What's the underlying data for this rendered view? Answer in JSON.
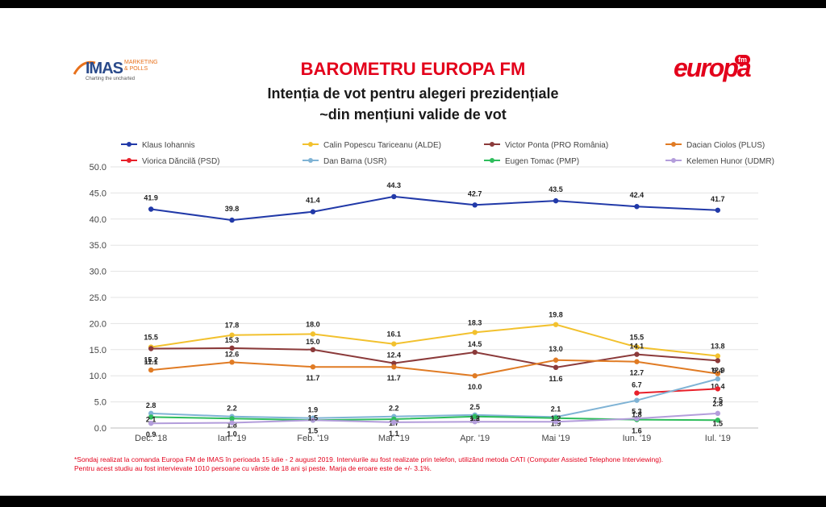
{
  "header": {
    "title": "BAROMETRU EUROPA FM",
    "subtitle_line1": "Intenția de vot pentru alegeri prezidențiale",
    "subtitle_line2": "~din mențiuni valide de vot"
  },
  "logos": {
    "imas_word": "IMAS",
    "imas_sub1": "MARKETING",
    "imas_sub2": "& POLLS",
    "imas_tagline": "Charting the uncharted",
    "europa_word": "europa",
    "europa_fm": "fm"
  },
  "footnote": {
    "line1": "*Sondaj realizat la comanda Europa FM de IMAS în perioada 15 iulie - 2 august 2019. Interviurile au fost realizate prin telefon, utilizând metoda CATI (Computer Assisted Telephone Interviewing).",
    "line2": "Pentru acest studiu au fost intervievate 1010 persoane cu vârste de 18 ani și peste. Marja de eroare este de +/- 3.1%."
  },
  "colors": {
    "brand_red": "#e3001b",
    "iohannis": "#2139a8",
    "tariceanu": "#f2c12e",
    "ponta": "#8b3a3a",
    "ciolos": "#e07b24",
    "dancila": "#e8202a",
    "barna": "#7fb3d5",
    "tomac": "#2ebd5c",
    "kelemen": "#b39ddb"
  },
  "chart_data": {
    "type": "line",
    "title": "Intenția de vot pentru alegeri prezidențiale",
    "xlabel": "",
    "ylabel": "",
    "ylim": [
      0,
      50
    ],
    "yticks": [
      "0.0",
      "5.0",
      "10.0",
      "15.0",
      "20.0",
      "25.0",
      "30.0",
      "35.0",
      "40.0",
      "45.0",
      "50.0"
    ],
    "grid": true,
    "legend_position": "top",
    "categories": [
      "Dec. '18",
      "Ian. '19",
      "Feb. '19",
      "Mar. '19",
      "Apr. '19",
      "Mai '19",
      "Iun. '19",
      "Iul. '19"
    ],
    "series": [
      {
        "name": "Klaus Iohannis",
        "color": "#2139a8",
        "values": [
          41.9,
          39.8,
          41.4,
          44.3,
          42.7,
          43.5,
          42.4,
          41.7
        ]
      },
      {
        "name": "Calin Popescu Tariceanu (ALDE)",
        "color": "#f2c12e",
        "values": [
          15.5,
          17.8,
          18.0,
          16.1,
          18.3,
          19.8,
          15.5,
          13.8
        ]
      },
      {
        "name": "Victor Ponta (PRO România)",
        "color": "#8b3a3a",
        "values": [
          15.2,
          15.3,
          15.0,
          12.4,
          14.5,
          11.6,
          14.1,
          12.9
        ]
      },
      {
        "name": "Dacian Ciolos (PLUS)",
        "color": "#e07b24",
        "values": [
          11.1,
          12.6,
          11.7,
          11.7,
          10.0,
          13.0,
          12.7,
          10.4
        ]
      },
      {
        "name": "Viorica Dăncilă (PSD)",
        "color": "#e8202a",
        "values": [
          null,
          null,
          null,
          null,
          null,
          null,
          6.7,
          7.5
        ]
      },
      {
        "name": "Dan Barna (USR)",
        "color": "#7fb3d5",
        "values": [
          2.8,
          2.2,
          1.9,
          2.2,
          2.5,
          2.1,
          5.3,
          9.4
        ]
      },
      {
        "name": "Eugen Tomac (PMP)",
        "color": "#2ebd5c",
        "values": [
          2.1,
          1.8,
          1.5,
          1.7,
          2.2,
          1.9,
          1.6,
          1.5
        ]
      },
      {
        "name": "Kelemen Hunor (UDMR)",
        "color": "#b39ddb",
        "values": [
          0.9,
          1.0,
          1.5,
          1.1,
          1.2,
          1.2,
          1.8,
          2.8
        ]
      }
    ]
  }
}
